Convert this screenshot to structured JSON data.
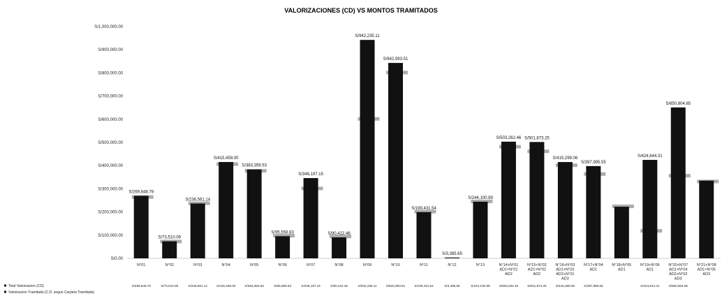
{
  "chart_data": {
    "type": "bar",
    "title": "VALORIZACIONES (CD) VS MONTOS TRAMITADOS",
    "ylim": [
      0,
      1000000
    ],
    "y_tick_labels": [
      "S/0.00",
      "S/100,000.00",
      "S/200,000.00",
      "S/300,000.00",
      "S/400,000.00",
      "S/500,000.00",
      "S/600,000.00",
      "S/700,000.00",
      "S/800,000.00",
      "S/900,000.00",
      "S/1,000,000.00"
    ],
    "grid": false,
    "legend_position": "bottom-left",
    "categories": [
      [
        "N°01"
      ],
      [
        "N°02"
      ],
      [
        "N°03"
      ],
      [
        "N°04"
      ],
      [
        "N°05"
      ],
      [
        "N°06"
      ],
      [
        "N°07"
      ],
      [
        "N°08"
      ],
      [
        "N°09"
      ],
      [
        "N°10"
      ],
      [
        "N°11"
      ],
      [
        "N°12"
      ],
      [
        "N°13"
      ],
      [
        "N°14+N°01",
        "AD1+N°01",
        "AD2"
      ],
      [
        "N°15+N°02",
        "AD1+N°02",
        "AD2"
      ],
      [
        "N°16+N°03",
        "AD1+N°03",
        "AD2+N°01",
        "AD3"
      ],
      [
        "N°17+N°04",
        "AD1"
      ],
      [
        "N°18+N°05",
        "AD1"
      ],
      [
        "N°19+N°06",
        "AD1"
      ],
      [
        "N°20+N°07",
        "AD1+N°04",
        "AD2+N°02",
        "AD3"
      ],
      [
        "N°21+N°08",
        "AD1+N°05",
        "AD3"
      ]
    ],
    "series": [
      {
        "name": "Total Valorizacion (CD)",
        "values": [
          269848.78,
          73510.09,
          236561.14,
          415459.0,
          383359.53,
          95558.83,
          346197.15,
          90422.46,
          942235.11,
          842993.51,
          199431.54,
          3385.65,
          244100.99,
          503262.46,
          501873.25,
          415299.06,
          397995.55,
          222605.0,
          424644.31,
          650904.85,
          335115.0
        ],
        "labels": [
          "S/269,848.78",
          "S/73,510.09",
          "S/236,561.14",
          "S/415,459.00",
          "S/383,359.53",
          "S/95,558.83",
          "S/346,197.15",
          "S/90,422.46",
          "S/942,235.11",
          "S/842,993.51",
          "S/199,431.54",
          "S/3,385.65",
          "S/244,100.99",
          "S/503,262.46",
          "S/501,873.25",
          "S/415,299.06",
          "S/397,995.55",
          "",
          "S/424,644.31",
          "S/650,904.85",
          ""
        ]
      },
      {
        "name": "Valorizacion Tramitada (C.D. segun Carpeta Tramitada)",
        "values": [
          263000,
          71000,
          236000,
          405000,
          376000,
          96000,
          300000,
          93000,
          600000,
          800000,
          200000,
          3385.65,
          244000,
          480000,
          460000,
          400000,
          362000,
          222605.0,
          117000,
          355000,
          330000
        ]
      }
    ],
    "table_row_labels": [
      "Total Valorizacion (CD)",
      "Valorizacion Tramitada (C.D. segun Carpeta Tramitada)"
    ]
  }
}
